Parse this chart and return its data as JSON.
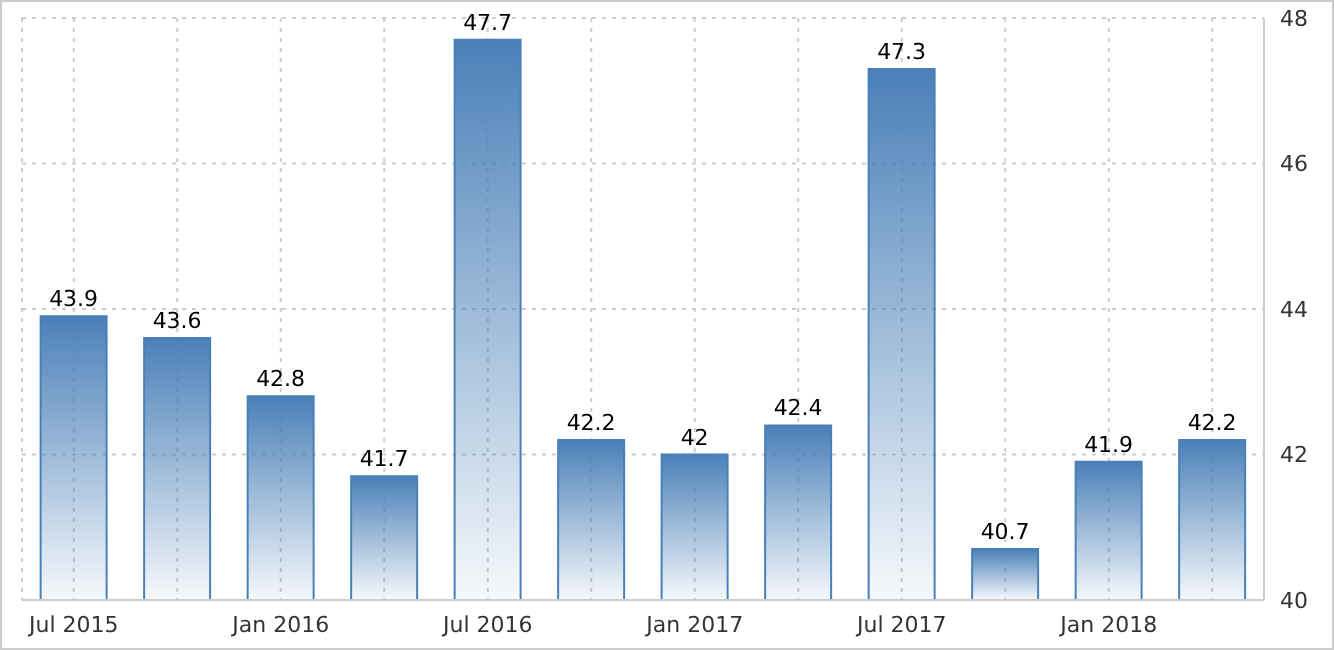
{
  "chart_data": {
    "type": "bar",
    "categories": [
      "Jul 2015",
      null,
      "Jan 2016",
      null,
      "Jul 2016",
      null,
      "Jan 2017",
      null,
      "Jul 2017",
      null,
      "Jan 2018",
      null
    ],
    "values": [
      43.9,
      43.6,
      42.8,
      41.7,
      47.7,
      42.2,
      42,
      42.4,
      47.3,
      40.7,
      41.9,
      42.2
    ],
    "color": "#4a80b8",
    "ylim": [
      40,
      48
    ],
    "yticks": [
      40,
      42,
      44,
      46,
      48
    ],
    "grid": true,
    "data_labels": true
  }
}
